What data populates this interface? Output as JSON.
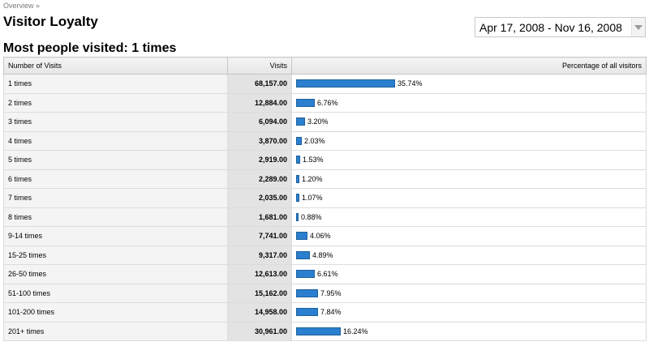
{
  "breadcrumb": {
    "link": "Overview",
    "separator": "»"
  },
  "header": {
    "title": "Visitor Loyalty",
    "subtitle": "Most people visited: 1 times",
    "date_range": "Apr 17, 2008 - Nov 16, 2008",
    "date_range_arrow_icon": "chevron-down-icon"
  },
  "colors": {
    "bar": "#2a7fcf",
    "visits_column_bg": "#e3e3e3"
  },
  "table": {
    "columns": [
      "Number of Visits",
      "Visits",
      "Percentage of all visitors"
    ],
    "rows": [
      {
        "label": "1 times",
        "visits": "68,157.00",
        "percent": "35.74%",
        "share": 35.74
      },
      {
        "label": "2 times",
        "visits": "12,884.00",
        "percent": "6.76%",
        "share": 6.76
      },
      {
        "label": "3 times",
        "visits": "6,094.00",
        "percent": "3.20%",
        "share": 3.2
      },
      {
        "label": "4 times",
        "visits": "3,870.00",
        "percent": "2.03%",
        "share": 2.03
      },
      {
        "label": "5 times",
        "visits": "2,919.00",
        "percent": "1.53%",
        "share": 1.53
      },
      {
        "label": "6 times",
        "visits": "2,289.00",
        "percent": "1.20%",
        "share": 1.2
      },
      {
        "label": "7 times",
        "visits": "2,035.00",
        "percent": "1.07%",
        "share": 1.07
      },
      {
        "label": "8 times",
        "visits": "1,681.00",
        "percent": "0.88%",
        "share": 0.88
      },
      {
        "label": "9-14 times",
        "visits": "7,741.00",
        "percent": "4.06%",
        "share": 4.06
      },
      {
        "label": "15-25 times",
        "visits": "9,317.00",
        "percent": "4.89%",
        "share": 4.89
      },
      {
        "label": "26-50 times",
        "visits": "12,613.00",
        "percent": "6.61%",
        "share": 6.61
      },
      {
        "label": "51-100 times",
        "visits": "15,162.00",
        "percent": "7.95%",
        "share": 7.95
      },
      {
        "label": "101-200 times",
        "visits": "14,958.00",
        "percent": "7.84%",
        "share": 7.84
      },
      {
        "label": "201+ times",
        "visits": "30,961.00",
        "percent": "16.24%",
        "share": 16.24
      }
    ]
  }
}
